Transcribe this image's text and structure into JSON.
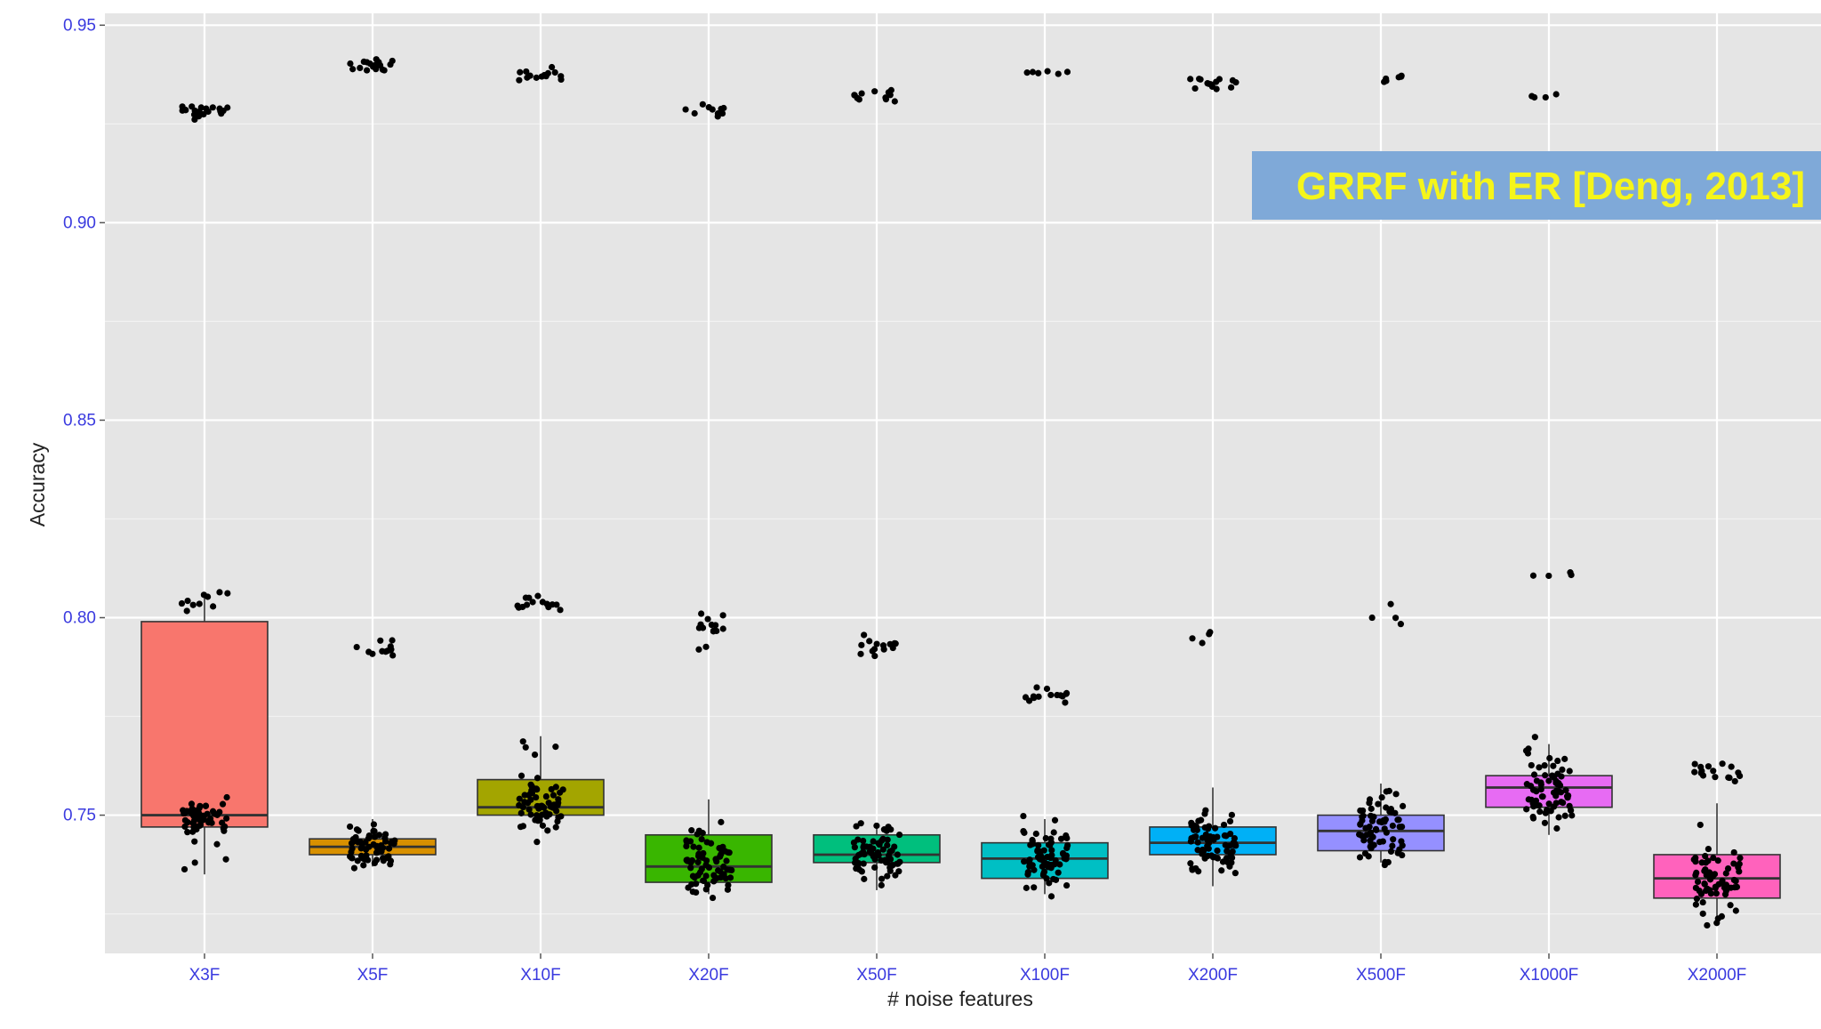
{
  "chart_data": {
    "type": "boxplot",
    "xlabel": "# noise features",
    "ylabel": "Accuracy",
    "ylim": [
      0.715,
      0.953
    ],
    "y_ticks": [
      "0.75",
      "0.80",
      "0.85",
      "0.90",
      "0.95"
    ],
    "y_tick_values": [
      0.75,
      0.8,
      0.85,
      0.9,
      0.95
    ],
    "grid": true,
    "legend": "none",
    "annotation": "GRRF with ER [Deng, 2013]",
    "annotation_fill": "#7fa9d8",
    "annotation_color": "#f5f51a",
    "categories": [
      "X3F",
      "X5F",
      "X10F",
      "X20F",
      "X50F",
      "X100F",
      "X200F",
      "X500F",
      "X1000F",
      "X2000F"
    ],
    "boxes": [
      {
        "category": "X3F",
        "color": "#f8766d",
        "q1": 0.747,
        "median": 0.75,
        "q3": 0.799,
        "whisker_low": 0.735,
        "whisker_high": 0.806
      },
      {
        "category": "X5F",
        "color": "#d89000",
        "q1": 0.74,
        "median": 0.742,
        "q3": 0.744,
        "whisker_low": 0.737,
        "whisker_high": 0.749
      },
      {
        "category": "X10F",
        "color": "#a3a500",
        "q1": 0.75,
        "median": 0.752,
        "q3": 0.759,
        "whisker_low": 0.747,
        "whisker_high": 0.77
      },
      {
        "category": "X20F",
        "color": "#39b600",
        "q1": 0.733,
        "median": 0.737,
        "q3": 0.745,
        "whisker_low": 0.73,
        "whisker_high": 0.754
      },
      {
        "category": "X50F",
        "color": "#00bf7d",
        "q1": 0.738,
        "median": 0.74,
        "q3": 0.745,
        "whisker_low": 0.731,
        "whisker_high": 0.748
      },
      {
        "category": "X100F",
        "color": "#00bfc4",
        "q1": 0.734,
        "median": 0.739,
        "q3": 0.743,
        "whisker_low": 0.73,
        "whisker_high": 0.749
      },
      {
        "category": "X200F",
        "color": "#00b0f6",
        "q1": 0.74,
        "median": 0.743,
        "q3": 0.747,
        "whisker_low": 0.732,
        "whisker_high": 0.757
      },
      {
        "category": "X500F",
        "color": "#9590ff",
        "q1": 0.741,
        "median": 0.746,
        "q3": 0.75,
        "whisker_low": 0.738,
        "whisker_high": 0.758
      },
      {
        "category": "X1000F",
        "color": "#e76bf3",
        "q1": 0.752,
        "median": 0.757,
        "q3": 0.76,
        "whisker_low": 0.745,
        "whisker_high": 0.768
      },
      {
        "category": "X2000F",
        "color": "#ff62bc",
        "q1": 0.729,
        "median": 0.734,
        "q3": 0.74,
        "whisker_low": 0.723,
        "whisker_high": 0.753
      }
    ],
    "point_clusters": [
      {
        "category": "X3F",
        "groups": [
          {
            "center": 0.928,
            "spread": 0.0012,
            "count": 22
          },
          {
            "center": 0.804,
            "spread": 0.002,
            "count": 10
          },
          {
            "center": 0.749,
            "spread": 0.0025,
            "count": 55
          },
          {
            "center": 0.737,
            "spread": 0.0015,
            "count": 3
          }
        ]
      },
      {
        "category": "X5F",
        "groups": [
          {
            "center": 0.94,
            "spread": 0.001,
            "count": 18
          },
          {
            "center": 0.792,
            "spread": 0.0015,
            "count": 12
          },
          {
            "center": 0.742,
            "spread": 0.0025,
            "count": 60
          }
        ]
      },
      {
        "category": "X10F",
        "groups": [
          {
            "center": 0.937,
            "spread": 0.001,
            "count": 14
          },
          {
            "center": 0.803,
            "spread": 0.002,
            "count": 14
          },
          {
            "center": 0.753,
            "spread": 0.0035,
            "count": 60
          },
          {
            "center": 0.767,
            "spread": 0.002,
            "count": 4
          }
        ]
      },
      {
        "category": "X20F",
        "groups": [
          {
            "center": 0.928,
            "spread": 0.001,
            "count": 10
          },
          {
            "center": 0.797,
            "spread": 0.002,
            "count": 14
          },
          {
            "center": 0.738,
            "spread": 0.005,
            "count": 70
          }
        ]
      },
      {
        "category": "X50F",
        "groups": [
          {
            "center": 0.932,
            "spread": 0.001,
            "count": 12
          },
          {
            "center": 0.793,
            "spread": 0.0015,
            "count": 14
          },
          {
            "center": 0.74,
            "spread": 0.0035,
            "count": 70
          }
        ]
      },
      {
        "category": "X100F",
        "groups": [
          {
            "center": 0.938,
            "spread": 0.0012,
            "count": 6
          },
          {
            "center": 0.78,
            "spread": 0.002,
            "count": 14
          },
          {
            "center": 0.738,
            "spread": 0.0045,
            "count": 70
          }
        ]
      },
      {
        "category": "X200F",
        "groups": [
          {
            "center": 0.935,
            "spread": 0.001,
            "count": 14
          },
          {
            "center": 0.796,
            "spread": 0.0012,
            "count": 4
          },
          {
            "center": 0.743,
            "spread": 0.0045,
            "count": 75
          }
        ]
      },
      {
        "category": "X500F",
        "groups": [
          {
            "center": 0.937,
            "spread": 0.0008,
            "count": 6
          },
          {
            "center": 0.801,
            "spread": 0.0018,
            "count": 4
          },
          {
            "center": 0.746,
            "spread": 0.0045,
            "count": 70
          }
        ]
      },
      {
        "category": "X1000F",
        "groups": [
          {
            "center": 0.932,
            "spread": 0.0004,
            "count": 4
          },
          {
            "center": 0.81,
            "spread": 0.0015,
            "count": 4
          },
          {
            "center": 0.757,
            "spread": 0.0045,
            "count": 70
          }
        ]
      },
      {
        "category": "X2000F",
        "groups": [
          {
            "center": 0.761,
            "spread": 0.001,
            "count": 16
          },
          {
            "center": 0.734,
            "spread": 0.005,
            "count": 65
          }
        ]
      }
    ]
  }
}
